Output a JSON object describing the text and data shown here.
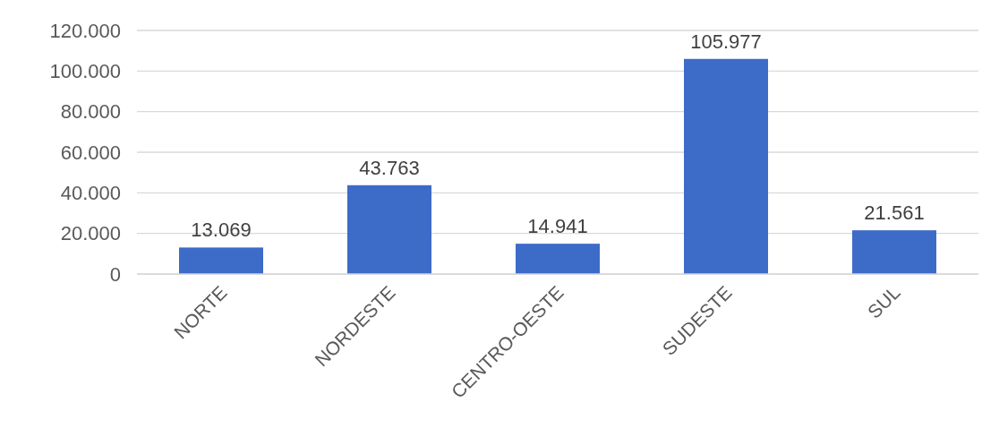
{
  "chart_data": {
    "type": "bar",
    "categories": [
      "NORTE",
      "NORDESTE",
      "CENTRO-OESTE",
      "SUDESTE",
      "SUL"
    ],
    "values": [
      13069,
      43763,
      14941,
      105977,
      21561
    ],
    "value_labels": [
      "13.069",
      "43.763",
      "14.941",
      "105.977",
      "21.561"
    ],
    "color": "#3d6cc8",
    "ylim": [
      0,
      120000
    ],
    "yticks": [
      {
        "value": 0,
        "label": "0"
      },
      {
        "value": 20000,
        "label": "20.000"
      },
      {
        "value": 40000,
        "label": "40.000"
      },
      {
        "value": 60000,
        "label": "60.000"
      },
      {
        "value": 80000,
        "label": "80.000"
      },
      {
        "value": 100000,
        "label": "100.000"
      },
      {
        "value": 120000,
        "label": "120.000"
      }
    ],
    "grid": "y"
  }
}
